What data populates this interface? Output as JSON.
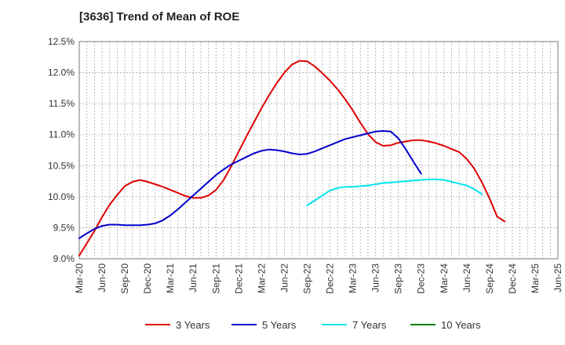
{
  "chart_data": {
    "type": "line",
    "title": "[3636]  Trend of Mean of ROE",
    "xlabel": "",
    "ylabel": "",
    "x_ticks": [
      "Mar-20",
      "Jun-20",
      "Sep-20",
      "Dec-20",
      "Mar-21",
      "Jun-21",
      "Sep-21",
      "Dec-21",
      "Mar-22",
      "Jun-22",
      "Sep-22",
      "Dec-22",
      "Mar-23",
      "Jun-23",
      "Sep-23",
      "Dec-23",
      "Mar-24",
      "Jun-24",
      "Sep-24",
      "Dec-24",
      "Mar-25",
      "Jun-25"
    ],
    "y_ticks": [
      "9.0%",
      "9.5%",
      "10.0%",
      "10.5%",
      "11.0%",
      "11.5%",
      "12.0%",
      "12.5%"
    ],
    "y_tick_values": [
      9.0,
      9.5,
      10.0,
      10.5,
      11.0,
      11.5,
      12.0,
      12.5
    ],
    "ylim": [
      9.0,
      12.5
    ],
    "grid": true,
    "legend_position": "bottom",
    "series": [
      {
        "name": "3 Years",
        "color": "#dd0000",
        "points": [
          [
            "Mar-20",
            9.05
          ],
          [
            "Apr-20",
            9.25
          ],
          [
            "May-20",
            9.45
          ],
          [
            "Jun-20",
            9.67
          ],
          [
            "Jul-20",
            9.87
          ],
          [
            "Aug-20",
            10.03
          ],
          [
            "Sep-20",
            10.17
          ],
          [
            "Oct-20",
            10.24
          ],
          [
            "Nov-20",
            10.27
          ],
          [
            "Dec-20",
            10.24
          ],
          [
            "Jan-21",
            10.2
          ],
          [
            "Feb-21",
            10.16
          ],
          [
            "Mar-21",
            10.11
          ],
          [
            "Apr-21",
            10.06
          ],
          [
            "May-21",
            10.01
          ],
          [
            "Jun-21",
            9.98
          ],
          [
            "Jul-21",
            9.98
          ],
          [
            "Aug-21",
            10.02
          ],
          [
            "Sep-21",
            10.11
          ],
          [
            "Oct-21",
            10.27
          ],
          [
            "Nov-21",
            10.49
          ],
          [
            "Dec-21",
            10.73
          ],
          [
            "Jan-22",
            10.97
          ],
          [
            "Feb-22",
            11.2
          ],
          [
            "Mar-22",
            11.43
          ],
          [
            "Apr-22",
            11.64
          ],
          [
            "May-22",
            11.83
          ],
          [
            "Jun-22",
            12.0
          ],
          [
            "Jul-22",
            12.13
          ],
          [
            "Aug-22",
            12.19
          ],
          [
            "Sep-22",
            12.18
          ],
          [
            "Oct-22",
            12.1
          ],
          [
            "Nov-22",
            11.99
          ],
          [
            "Dec-22",
            11.87
          ],
          [
            "Jan-23",
            11.73
          ],
          [
            "Feb-23",
            11.57
          ],
          [
            "Mar-23",
            11.39
          ],
          [
            "Apr-23",
            11.19
          ],
          [
            "May-23",
            11.01
          ],
          [
            "Jun-23",
            10.88
          ],
          [
            "Jul-23",
            10.82
          ],
          [
            "Aug-23",
            10.83
          ],
          [
            "Sep-23",
            10.87
          ],
          [
            "Oct-23",
            10.89
          ],
          [
            "Nov-23",
            10.91
          ],
          [
            "Dec-23",
            10.91
          ],
          [
            "Jan-24",
            10.89
          ],
          [
            "Feb-24",
            10.86
          ],
          [
            "Mar-24",
            10.82
          ],
          [
            "Apr-24",
            10.77
          ],
          [
            "May-24",
            10.72
          ],
          [
            "Jun-24",
            10.61
          ],
          [
            "Jul-24",
            10.45
          ],
          [
            "Aug-24",
            10.23
          ],
          [
            "Sep-24",
            9.97
          ],
          [
            "Oct-24",
            9.68
          ],
          [
            "Nov-24",
            9.6
          ]
        ]
      },
      {
        "name": "5 Years",
        "color": "#0000cc",
        "points": [
          [
            "Mar-20",
            9.33
          ],
          [
            "Apr-20",
            9.41
          ],
          [
            "May-20",
            9.48
          ],
          [
            "Jun-20",
            9.53
          ],
          [
            "Jul-20",
            9.55
          ],
          [
            "Aug-20",
            9.55
          ],
          [
            "Sep-20",
            9.54
          ],
          [
            "Oct-20",
            9.54
          ],
          [
            "Nov-20",
            9.54
          ],
          [
            "Dec-20",
            9.55
          ],
          [
            "Jan-21",
            9.57
          ],
          [
            "Feb-21",
            9.62
          ],
          [
            "Mar-21",
            9.7
          ],
          [
            "Apr-21",
            9.8
          ],
          [
            "May-21",
            9.91
          ],
          [
            "Jun-21",
            10.02
          ],
          [
            "Jul-21",
            10.13
          ],
          [
            "Aug-21",
            10.24
          ],
          [
            "Sep-21",
            10.35
          ],
          [
            "Oct-21",
            10.44
          ],
          [
            "Nov-21",
            10.52
          ],
          [
            "Dec-21",
            10.58
          ],
          [
            "Jan-22",
            10.64
          ],
          [
            "Feb-22",
            10.7
          ],
          [
            "Mar-22",
            10.74
          ],
          [
            "Apr-22",
            10.76
          ],
          [
            "May-22",
            10.75
          ],
          [
            "Jun-22",
            10.73
          ],
          [
            "Jul-22",
            10.7
          ],
          [
            "Aug-22",
            10.68
          ],
          [
            "Sep-22",
            10.69
          ],
          [
            "Oct-22",
            10.73
          ],
          [
            "Nov-22",
            10.78
          ],
          [
            "Dec-22",
            10.83
          ],
          [
            "Jan-23",
            10.88
          ],
          [
            "Feb-23",
            10.93
          ],
          [
            "Mar-23",
            10.96
          ],
          [
            "Apr-23",
            10.99
          ],
          [
            "May-23",
            11.02
          ],
          [
            "Jun-23",
            11.05
          ],
          [
            "Jul-23",
            11.06
          ],
          [
            "Aug-23",
            11.05
          ],
          [
            "Sep-23",
            10.94
          ],
          [
            "Oct-23",
            10.76
          ],
          [
            "Nov-23",
            10.56
          ],
          [
            "Dec-23",
            10.37
          ]
        ]
      },
      {
        "name": "7 Years",
        "color": "#00e5ee",
        "points": [
          [
            "Sep-22",
            9.86
          ],
          [
            "Oct-22",
            9.94
          ],
          [
            "Nov-22",
            10.02
          ],
          [
            "Dec-22",
            10.1
          ],
          [
            "Jan-23",
            10.14
          ],
          [
            "Feb-23",
            10.16
          ],
          [
            "Mar-23",
            10.16
          ],
          [
            "Apr-23",
            10.17
          ],
          [
            "May-23",
            10.18
          ],
          [
            "Jun-23",
            10.2
          ],
          [
            "Jul-23",
            10.22
          ],
          [
            "Aug-23",
            10.23
          ],
          [
            "Sep-23",
            10.24
          ],
          [
            "Oct-23",
            10.25
          ],
          [
            "Nov-23",
            10.26
          ],
          [
            "Dec-23",
            10.27
          ],
          [
            "Jan-24",
            10.28
          ],
          [
            "Feb-24",
            10.28
          ],
          [
            "Mar-24",
            10.27
          ],
          [
            "Apr-24",
            10.24
          ],
          [
            "May-24",
            10.21
          ],
          [
            "Jun-24",
            10.18
          ],
          [
            "Jul-24",
            10.12
          ],
          [
            "Aug-24",
            10.04
          ]
        ]
      },
      {
        "name": "10 Years",
        "color": "#008000",
        "points": []
      }
    ]
  }
}
